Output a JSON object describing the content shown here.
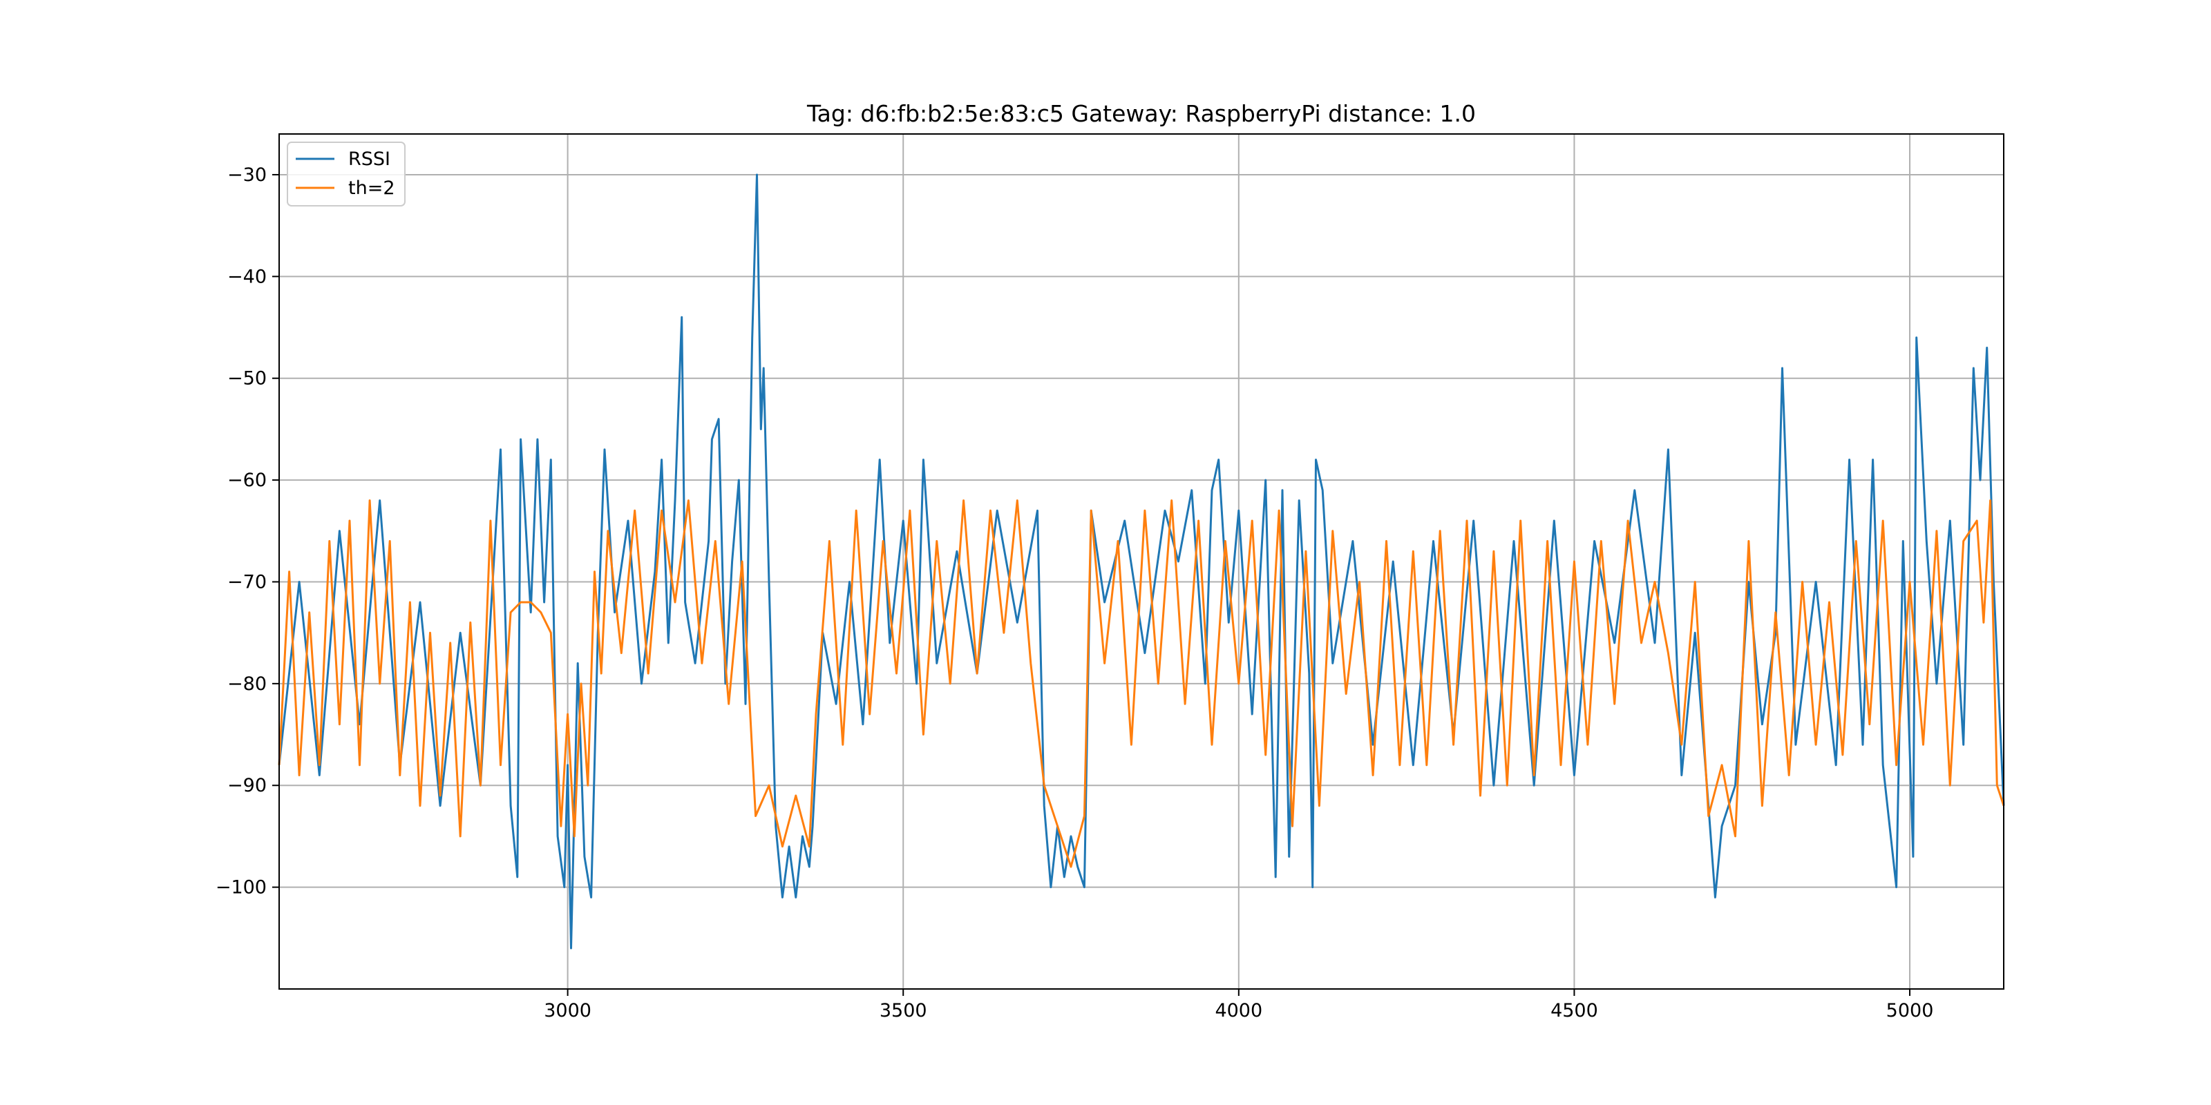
{
  "chart_data": {
    "type": "line",
    "title": "Tag: d6:fb:b2:5e:83:c5 Gateway: RaspberryPi distance: 1.0",
    "xlabel": "",
    "ylabel": "",
    "xlim": [
      2570,
      5140
    ],
    "ylim": [
      -110,
      -26
    ],
    "xticks": [
      3000,
      3500,
      4000,
      4500,
      5000
    ],
    "yticks": [
      -30,
      -40,
      -50,
      -60,
      -70,
      -80,
      -90,
      -100
    ],
    "grid": true,
    "legend_position": "top-left",
    "series": [
      {
        "name": "RSSI",
        "color": "#1f77b4",
        "points": [
          [
            2570,
            -88
          ],
          [
            2600,
            -70
          ],
          [
            2630,
            -89
          ],
          [
            2660,
            -65
          ],
          [
            2690,
            -84
          ],
          [
            2720,
            -62
          ],
          [
            2750,
            -88
          ],
          [
            2780,
            -72
          ],
          [
            2810,
            -92
          ],
          [
            2840,
            -75
          ],
          [
            2870,
            -90
          ],
          [
            2900,
            -57
          ],
          [
            2915,
            -92
          ],
          [
            2925,
            -99
          ],
          [
            2930,
            -56
          ],
          [
            2945,
            -73
          ],
          [
            2955,
            -56
          ],
          [
            2965,
            -72
          ],
          [
            2975,
            -58
          ],
          [
            2985,
            -95
          ],
          [
            2995,
            -100
          ],
          [
            3000,
            -88
          ],
          [
            3005,
            -106
          ],
          [
            3015,
            -78
          ],
          [
            3025,
            -97
          ],
          [
            3035,
            -101
          ],
          [
            3045,
            -75
          ],
          [
            3055,
            -57
          ],
          [
            3070,
            -73
          ],
          [
            3090,
            -64
          ],
          [
            3110,
            -80
          ],
          [
            3130,
            -69
          ],
          [
            3140,
            -58
          ],
          [
            3150,
            -76
          ],
          [
            3160,
            -62
          ],
          [
            3170,
            -44
          ],
          [
            3175,
            -72
          ],
          [
            3190,
            -78
          ],
          [
            3210,
            -66
          ],
          [
            3215,
            -56
          ],
          [
            3225,
            -54
          ],
          [
            3235,
            -80
          ],
          [
            3245,
            -68
          ],
          [
            3255,
            -60
          ],
          [
            3265,
            -82
          ],
          [
            3275,
            -46
          ],
          [
            3282,
            -30
          ],
          [
            3288,
            -55
          ],
          [
            3292,
            -49
          ],
          [
            3300,
            -70
          ],
          [
            3310,
            -94
          ],
          [
            3320,
            -101
          ],
          [
            3330,
            -96
          ],
          [
            3340,
            -101
          ],
          [
            3350,
            -95
          ],
          [
            3360,
            -98
          ],
          [
            3365,
            -94
          ],
          [
            3380,
            -75
          ],
          [
            3400,
            -82
          ],
          [
            3420,
            -70
          ],
          [
            3440,
            -84
          ],
          [
            3465,
            -58
          ],
          [
            3480,
            -76
          ],
          [
            3500,
            -64
          ],
          [
            3520,
            -80
          ],
          [
            3530,
            -58
          ],
          [
            3550,
            -78
          ],
          [
            3580,
            -67
          ],
          [
            3610,
            -79
          ],
          [
            3640,
            -63
          ],
          [
            3670,
            -74
          ],
          [
            3700,
            -63
          ],
          [
            3710,
            -92
          ],
          [
            3720,
            -100
          ],
          [
            3730,
            -94
          ],
          [
            3740,
            -99
          ],
          [
            3750,
            -95
          ],
          [
            3760,
            -98
          ],
          [
            3770,
            -100
          ],
          [
            3780,
            -63
          ],
          [
            3800,
            -72
          ],
          [
            3830,
            -64
          ],
          [
            3860,
            -77
          ],
          [
            3890,
            -63
          ],
          [
            3910,
            -68
          ],
          [
            3930,
            -61
          ],
          [
            3950,
            -80
          ],
          [
            3960,
            -61
          ],
          [
            3970,
            -58
          ],
          [
            3985,
            -74
          ],
          [
            4000,
            -63
          ],
          [
            4020,
            -83
          ],
          [
            4040,
            -60
          ],
          [
            4055,
            -99
          ],
          [
            4065,
            -61
          ],
          [
            4075,
            -97
          ],
          [
            4090,
            -62
          ],
          [
            4105,
            -79
          ],
          [
            4110,
            -100
          ],
          [
            4115,
            -58
          ],
          [
            4125,
            -61
          ],
          [
            4140,
            -78
          ],
          [
            4170,
            -66
          ],
          [
            4200,
            -86
          ],
          [
            4230,
            -68
          ],
          [
            4260,
            -88
          ],
          [
            4290,
            -66
          ],
          [
            4320,
            -85
          ],
          [
            4350,
            -64
          ],
          [
            4380,
            -90
          ],
          [
            4410,
            -66
          ],
          [
            4440,
            -90
          ],
          [
            4470,
            -64
          ],
          [
            4500,
            -89
          ],
          [
            4530,
            -66
          ],
          [
            4560,
            -76
          ],
          [
            4590,
            -61
          ],
          [
            4620,
            -76
          ],
          [
            4640,
            -57
          ],
          [
            4660,
            -89
          ],
          [
            4680,
            -75
          ],
          [
            4700,
            -92
          ],
          [
            4710,
            -101
          ],
          [
            4720,
            -94
          ],
          [
            4740,
            -90
          ],
          [
            4760,
            -70
          ],
          [
            4780,
            -84
          ],
          [
            4800,
            -75
          ],
          [
            4810,
            -49
          ],
          [
            4830,
            -86
          ],
          [
            4860,
            -70
          ],
          [
            4890,
            -88
          ],
          [
            4910,
            -58
          ],
          [
            4930,
            -86
          ],
          [
            4945,
            -58
          ],
          [
            4960,
            -88
          ],
          [
            4980,
            -100
          ],
          [
            4990,
            -66
          ],
          [
            5005,
            -97
          ],
          [
            5010,
            -46
          ],
          [
            5025,
            -66
          ],
          [
            5040,
            -80
          ],
          [
            5060,
            -64
          ],
          [
            5080,
            -86
          ],
          [
            5095,
            -49
          ],
          [
            5105,
            -60
          ],
          [
            5115,
            -47
          ],
          [
            5125,
            -70
          ],
          [
            5140,
            -92
          ]
        ]
      },
      {
        "name": "th=2",
        "color": "#ff7f0e",
        "points": [
          [
            2570,
            -88
          ],
          [
            2585,
            -69
          ],
          [
            2600,
            -89
          ],
          [
            2615,
            -73
          ],
          [
            2630,
            -88
          ],
          [
            2645,
            -66
          ],
          [
            2660,
            -84
          ],
          [
            2675,
            -64
          ],
          [
            2690,
            -88
          ],
          [
            2705,
            -62
          ],
          [
            2720,
            -80
          ],
          [
            2735,
            -66
          ],
          [
            2750,
            -89
          ],
          [
            2765,
            -72
          ],
          [
            2780,
            -92
          ],
          [
            2795,
            -75
          ],
          [
            2810,
            -91
          ],
          [
            2825,
            -76
          ],
          [
            2840,
            -95
          ],
          [
            2855,
            -74
          ],
          [
            2870,
            -90
          ],
          [
            2885,
            -64
          ],
          [
            2900,
            -88
          ],
          [
            2915,
            -73
          ],
          [
            2930,
            -72
          ],
          [
            2945,
            -72
          ],
          [
            2960,
            -73
          ],
          [
            2975,
            -75
          ],
          [
            2990,
            -94
          ],
          [
            3000,
            -83
          ],
          [
            3010,
            -95
          ],
          [
            3020,
            -80
          ],
          [
            3030,
            -90
          ],
          [
            3040,
            -69
          ],
          [
            3050,
            -79
          ],
          [
            3060,
            -65
          ],
          [
            3080,
            -77
          ],
          [
            3100,
            -63
          ],
          [
            3120,
            -79
          ],
          [
            3140,
            -63
          ],
          [
            3160,
            -72
          ],
          [
            3180,
            -62
          ],
          [
            3200,
            -78
          ],
          [
            3220,
            -66
          ],
          [
            3240,
            -82
          ],
          [
            3260,
            -68
          ],
          [
            3280,
            -93
          ],
          [
            3300,
            -90
          ],
          [
            3320,
            -96
          ],
          [
            3340,
            -91
          ],
          [
            3360,
            -96
          ],
          [
            3370,
            -83
          ],
          [
            3390,
            -66
          ],
          [
            3410,
            -86
          ],
          [
            3430,
            -63
          ],
          [
            3450,
            -83
          ],
          [
            3470,
            -66
          ],
          [
            3490,
            -79
          ],
          [
            3510,
            -63
          ],
          [
            3530,
            -85
          ],
          [
            3550,
            -66
          ],
          [
            3570,
            -80
          ],
          [
            3590,
            -62
          ],
          [
            3610,
            -79
          ],
          [
            3630,
            -63
          ],
          [
            3650,
            -75
          ],
          [
            3670,
            -62
          ],
          [
            3690,
            -78
          ],
          [
            3710,
            -90
          ],
          [
            3730,
            -94
          ],
          [
            3750,
            -98
          ],
          [
            3770,
            -93
          ],
          [
            3780,
            -63
          ],
          [
            3800,
            -78
          ],
          [
            3820,
            -66
          ],
          [
            3840,
            -86
          ],
          [
            3860,
            -63
          ],
          [
            3880,
            -80
          ],
          [
            3900,
            -62
          ],
          [
            3920,
            -82
          ],
          [
            3940,
            -64
          ],
          [
            3960,
            -86
          ],
          [
            3980,
            -66
          ],
          [
            4000,
            -80
          ],
          [
            4020,
            -64
          ],
          [
            4040,
            -87
          ],
          [
            4060,
            -63
          ],
          [
            4080,
            -94
          ],
          [
            4100,
            -67
          ],
          [
            4120,
            -92
          ],
          [
            4140,
            -65
          ],
          [
            4160,
            -81
          ],
          [
            4180,
            -70
          ],
          [
            4200,
            -89
          ],
          [
            4220,
            -66
          ],
          [
            4240,
            -88
          ],
          [
            4260,
            -67
          ],
          [
            4280,
            -88
          ],
          [
            4300,
            -65
          ],
          [
            4320,
            -86
          ],
          [
            4340,
            -64
          ],
          [
            4360,
            -91
          ],
          [
            4380,
            -67
          ],
          [
            4400,
            -90
          ],
          [
            4420,
            -64
          ],
          [
            4440,
            -89
          ],
          [
            4460,
            -66
          ],
          [
            4480,
            -88
          ],
          [
            4500,
            -68
          ],
          [
            4520,
            -86
          ],
          [
            4540,
            -66
          ],
          [
            4560,
            -82
          ],
          [
            4580,
            -64
          ],
          [
            4600,
            -76
          ],
          [
            4620,
            -70
          ],
          [
            4640,
            -77
          ],
          [
            4660,
            -86
          ],
          [
            4680,
            -70
          ],
          [
            4700,
            -93
          ],
          [
            4720,
            -88
          ],
          [
            4740,
            -95
          ],
          [
            4760,
            -66
          ],
          [
            4780,
            -92
          ],
          [
            4800,
            -73
          ],
          [
            4820,
            -89
          ],
          [
            4840,
            -70
          ],
          [
            4860,
            -86
          ],
          [
            4880,
            -72
          ],
          [
            4900,
            -87
          ],
          [
            4920,
            -66
          ],
          [
            4940,
            -84
          ],
          [
            4960,
            -64
          ],
          [
            4980,
            -88
          ],
          [
            5000,
            -70
          ],
          [
            5020,
            -86
          ],
          [
            5040,
            -65
          ],
          [
            5060,
            -90
          ],
          [
            5080,
            -66
          ],
          [
            5100,
            -64
          ],
          [
            5110,
            -74
          ],
          [
            5120,
            -62
          ],
          [
            5130,
            -90
          ],
          [
            5140,
            -92
          ]
        ]
      }
    ]
  }
}
